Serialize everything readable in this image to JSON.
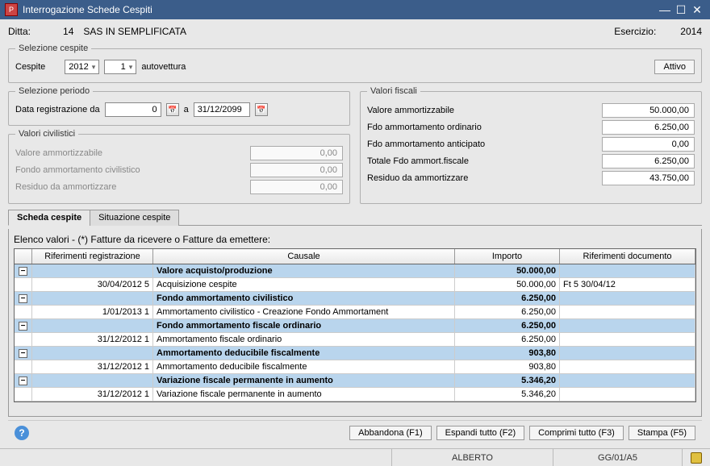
{
  "window": {
    "title": "Interrogazione Schede Cespiti"
  },
  "header": {
    "ditta_label": "Ditta:",
    "ditta_num": "14",
    "ditta_name": "SAS IN SEMPLIFICATA",
    "esercizio_label": "Esercizio:",
    "esercizio_year": "2014"
  },
  "selezione_cespite": {
    "legend": "Selezione cespite",
    "cespite_label": "Cespite",
    "year": "2012",
    "num": "1",
    "desc": "autovettura",
    "attivo_btn": "Attivo"
  },
  "selezione_periodo": {
    "legend": "Selezione periodo",
    "label": "Data registrazione da",
    "from": "0",
    "a": "a",
    "to": "31/12/2099"
  },
  "valori_civilistici": {
    "legend": "Valori civilistici",
    "rows": [
      {
        "label": "Valore ammortizzabile",
        "value": "0,00"
      },
      {
        "label": "Fondo ammortamento civilistico",
        "value": "0,00"
      },
      {
        "label": "Residuo da ammortizzare",
        "value": "0,00"
      }
    ]
  },
  "valori_fiscali": {
    "legend": "Valori fiscali",
    "rows": [
      {
        "label": "Valore ammortizzabile",
        "value": "50.000,00"
      },
      {
        "label": "Fdo ammortamento ordinario",
        "value": "6.250,00"
      },
      {
        "label": "Fdo ammortamento anticipato",
        "value": "0,00"
      },
      {
        "label": "Totale Fdo ammort.fiscale",
        "value": "6.250,00"
      },
      {
        "label": "Residuo da ammortizzare",
        "value": "43.750,00"
      }
    ]
  },
  "tabs": {
    "scheda": "Scheda cespite",
    "situazione": "Situazione cespite"
  },
  "list": {
    "title": "Elenco valori - (*) Fatture da ricevere o Fatture da emettere:",
    "headers": {
      "riferimenti": "Riferimenti registrazione",
      "causale": "Causale",
      "importo": "Importo",
      "documento": "Riferimenti documento"
    },
    "rows": [
      {
        "group": true,
        "causale": "Valore acquisto/produzione",
        "importo": "50.000,00"
      },
      {
        "group": false,
        "rif": "30/04/2012 5",
        "causale": "Acquisizione cespite",
        "importo": "50.000,00",
        "doc": "Ft 5 30/04/12"
      },
      {
        "group": true,
        "causale": "Fondo ammortamento civilistico",
        "importo": "6.250,00"
      },
      {
        "group": false,
        "rif": "1/01/2013 1",
        "causale": "Ammortamento civilistico - Creazione Fondo Ammortament",
        "importo": "6.250,00"
      },
      {
        "group": true,
        "causale": "Fondo ammortamento fiscale ordinario",
        "importo": "6.250,00"
      },
      {
        "group": false,
        "rif": "31/12/2012 1",
        "causale": "Ammortamento fiscale ordinario",
        "importo": "6.250,00"
      },
      {
        "group": true,
        "causale": "Ammortamento deducibile fiscalmente",
        "importo": "903,80"
      },
      {
        "group": false,
        "rif": "31/12/2012 1",
        "causale": "Ammortamento deducibile fiscalmente",
        "importo": "903,80"
      },
      {
        "group": true,
        "causale": "Variazione fiscale permanente in aumento",
        "importo": "5.346,20"
      },
      {
        "group": false,
        "rif": "31/12/2012 1",
        "causale": "Variazione fiscale permanente in aumento",
        "importo": "5.346,20"
      }
    ]
  },
  "buttons": {
    "abbandona": "Abbandona (F1)",
    "espandi": "Espandi tutto (F2)",
    "comprimi": "Comprimi tutto (F3)",
    "stampa": "Stampa (F5)"
  },
  "status": {
    "user": "ALBERTO",
    "code": "GG/01/A5"
  }
}
